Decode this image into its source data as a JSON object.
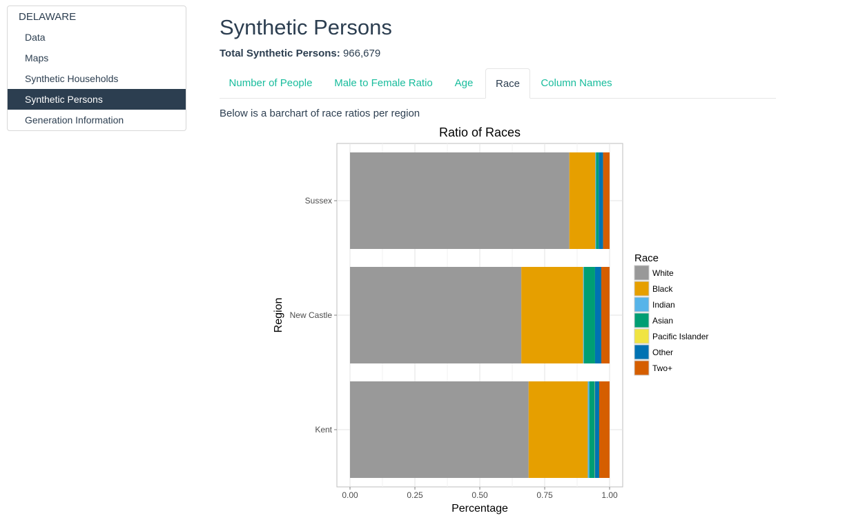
{
  "sidebar": {
    "header": "DELAWARE",
    "items": [
      {
        "label": "Data"
      },
      {
        "label": "Maps"
      },
      {
        "label": "Synthetic Households"
      },
      {
        "label": "Synthetic Persons",
        "active": true
      },
      {
        "label": "Generation Information"
      }
    ]
  },
  "main": {
    "title": "Synthetic Persons",
    "total_label": "Total Synthetic Persons:",
    "total_value": "966,679",
    "tabs": [
      {
        "label": "Number of People"
      },
      {
        "label": "Male to Female Ratio"
      },
      {
        "label": "Age"
      },
      {
        "label": "Race",
        "active": true
      },
      {
        "label": "Column Names"
      }
    ],
    "description": "Below is a barchart of race ratios per region"
  },
  "colors": {
    "accent": "#18bc9c",
    "nav_active": "#2c3e50",
    "text": "#2c3e50"
  },
  "chart_data": {
    "type": "bar",
    "orientation": "horizontal",
    "stacked": true,
    "title": "Ratio of Races",
    "xlabel": "Percentage",
    "ylabel": "Region",
    "xlim": [
      0,
      1
    ],
    "xticks": [
      "0.00",
      "0.25",
      "0.50",
      "0.75",
      "1.00"
    ],
    "categories": [
      "Sussex",
      "New Castle",
      "Kent"
    ],
    "grid": true,
    "legend_title": "Race",
    "legend_position": "right",
    "series": [
      {
        "name": "White",
        "color": "#999999",
        "values": [
          0.845,
          0.66,
          0.688
        ]
      },
      {
        "name": "Black",
        "color": "#E69F00",
        "values": [
          0.1,
          0.238,
          0.228
        ]
      },
      {
        "name": "Indian",
        "color": "#56B4E9",
        "values": [
          0.003,
          0.003,
          0.006
        ]
      },
      {
        "name": "Asian",
        "color": "#009E73",
        "values": [
          0.01,
          0.043,
          0.02
        ]
      },
      {
        "name": "Pacific Islander",
        "color": "#F0E442",
        "values": [
          0.0,
          0.0,
          0.001
        ]
      },
      {
        "name": "Other",
        "color": "#0072B2",
        "values": [
          0.017,
          0.024,
          0.017
        ]
      },
      {
        "name": "Two+",
        "color": "#D55E00",
        "values": [
          0.025,
          0.032,
          0.04
        ]
      }
    ]
  }
}
